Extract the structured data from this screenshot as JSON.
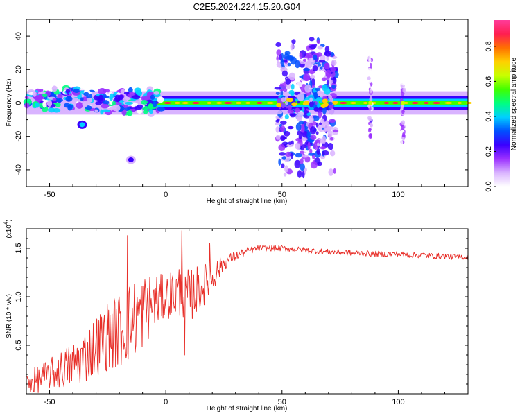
{
  "title": "C2E5.2024.224.15.20.G04",
  "colors": {
    "line": "#e8302a",
    "background": "#ffffff",
    "axis": "#000000"
  },
  "colorbar": {
    "label": "Normalized spectral amplitude",
    "ticks": [
      "0.0",
      "0.2",
      "0.4",
      "0.6",
      "0.8"
    ],
    "tick_values": [
      0.0,
      0.2,
      0.4,
      0.6,
      0.8
    ],
    "range": [
      0,
      0.95
    ],
    "colormap": [
      "#ffffff",
      "#d9b3ff",
      "#9b30ff",
      "#3a00ff",
      "#0050ff",
      "#00d0ff",
      "#00ff80",
      "#40ff00",
      "#c8ff00",
      "#ffd000",
      "#ff7000",
      "#ff1e50",
      "#ff3c9a"
    ]
  },
  "chart_data": [
    {
      "type": "heatmap",
      "title": "C2E5.2024.224.15.20.G04",
      "xlabel": "Height of straight line (km)",
      "ylabel": "Frequency (Hz)",
      "xlim": [
        -60,
        130
      ],
      "ylim": [
        -50,
        50
      ],
      "x_ticks": [
        -50,
        0,
        50,
        100
      ],
      "y_ticks": [
        -40,
        -20,
        0,
        20,
        40
      ],
      "grid": false,
      "features": [
        {
          "name": "central band",
          "x_range": [
            -60,
            130
          ],
          "y_center": 0,
          "peak": 0.9
        },
        {
          "name": "noisy segment",
          "x_range": [
            -60,
            -10
          ],
          "y_range": [
            -10,
            10
          ],
          "peak": 0.5
        },
        {
          "name": "burst",
          "x_range": [
            48,
            73
          ],
          "y_range": [
            -43,
            40
          ],
          "peak": 0.4
        },
        {
          "name": "spike",
          "x": 88,
          "y_range": [
            -20,
            28
          ],
          "peak": 0.2
        },
        {
          "name": "spike",
          "x": 102,
          "y_range": [
            -25,
            18
          ],
          "peak": 0.2
        },
        {
          "name": "blob",
          "x": -36,
          "y": -13,
          "peak": 0.4
        },
        {
          "name": "blob",
          "x": -15,
          "y": -34,
          "peak": 0.2
        }
      ]
    },
    {
      "type": "line",
      "xlabel": "Height of straight line (km)",
      "ylabel": "SNR (10 * v/v)",
      "y_multiplier": "(x10",
      "y_multiplier_exp": "4",
      "xlim": [
        -60,
        130
      ],
      "ylim": [
        0,
        1.7
      ],
      "x_ticks": [
        -50,
        0,
        50,
        100
      ],
      "y_ticks": [
        0.5,
        1.0,
        1.5
      ],
      "x_tick_labels": [
        "-50",
        "0",
        "50",
        "100"
      ],
      "y_tick_labels": [
        "0.5",
        "1.0",
        "1.5"
      ],
      "grid": false,
      "series": [
        {
          "x": [
            -60,
            -55,
            -50,
            -45,
            -40,
            -35,
            -30,
            -25,
            -20,
            -15,
            -10,
            -5,
            0,
            5,
            10,
            15,
            20,
            25,
            30,
            35,
            40,
            45,
            50,
            55,
            60,
            65,
            70,
            75,
            80,
            85,
            90,
            95,
            100,
            105,
            110,
            115,
            120,
            125,
            130
          ],
          "values": [
            0.1,
            0.15,
            0.2,
            0.25,
            0.3,
            0.38,
            0.5,
            0.6,
            0.65,
            0.75,
            0.85,
            0.95,
            1.0,
            1.05,
            1.0,
            1.1,
            1.2,
            1.35,
            1.42,
            1.47,
            1.5,
            1.5,
            1.5,
            1.49,
            1.48,
            1.47,
            1.46,
            1.46,
            1.45,
            1.45,
            1.44,
            1.44,
            1.44,
            1.43,
            1.43,
            1.42,
            1.42,
            1.41,
            1.41
          ],
          "spread": [
            0.12,
            0.14,
            0.16,
            0.2,
            0.24,
            0.28,
            0.32,
            0.36,
            0.4,
            0.42,
            0.4,
            0.3,
            0.22,
            0.3,
            0.28,
            0.24,
            0.16,
            0.08,
            0.05,
            0.04,
            0.03,
            0.03,
            0.03,
            0.03,
            0.03,
            0.03,
            0.03,
            0.03,
            0.03,
            0.03,
            0.03,
            0.03,
            0.03,
            0.03,
            0.03,
            0.03,
            0.03,
            0.03,
            0.03
          ],
          "peaks": [
            {
              "x": -16.5,
              "y": 1.63
            },
            {
              "x": 7,
              "y": 1.68
            },
            {
              "x": 19,
              "y": 1.55
            },
            {
              "x": 8,
              "y": 0.4
            }
          ]
        }
      ]
    }
  ]
}
